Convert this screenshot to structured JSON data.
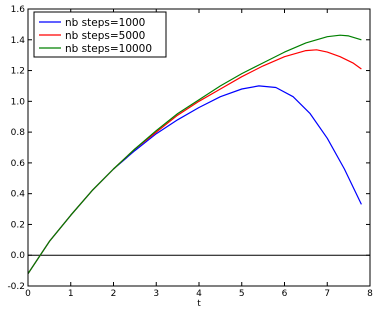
{
  "chart_data": {
    "type": "line",
    "title": "",
    "xlabel": "t",
    "ylabel": "",
    "xlim": [
      0,
      8
    ],
    "ylim": [
      -0.2,
      1.6
    ],
    "xticks": [
      "0",
      "1",
      "2",
      "3",
      "4",
      "5",
      "6",
      "7",
      "8"
    ],
    "yticks": [
      "-0.2",
      "0.0",
      "0.2",
      "0.4",
      "0.6",
      "0.8",
      "1.0",
      "1.2",
      "1.4",
      "1.6"
    ],
    "grid": false,
    "legend_position": "top-left",
    "reference_line_y": 0.0,
    "series": [
      {
        "name": "nb steps=1000",
        "color": "#0000ff",
        "x": [
          0,
          0.5,
          1,
          1.5,
          2,
          2.5,
          3,
          3.5,
          4,
          4.5,
          5,
          5.4,
          5.8,
          6.2,
          6.6,
          7,
          7.4,
          7.8
        ],
        "y": [
          -0.12,
          0.09,
          0.26,
          0.42,
          0.56,
          0.68,
          0.79,
          0.88,
          0.96,
          1.03,
          1.08,
          1.1,
          1.09,
          1.03,
          0.92,
          0.76,
          0.56,
          0.33
        ]
      },
      {
        "name": "nb steps=5000",
        "color": "#ff0000",
        "x": [
          0,
          0.5,
          1,
          1.5,
          2,
          2.5,
          3,
          3.5,
          4,
          4.5,
          5,
          5.5,
          6,
          6.5,
          6.75,
          7,
          7.3,
          7.6,
          7.8
        ],
        "y": [
          -0.12,
          0.09,
          0.26,
          0.42,
          0.56,
          0.69,
          0.8,
          0.91,
          1.0,
          1.08,
          1.16,
          1.23,
          1.29,
          1.33,
          1.335,
          1.32,
          1.29,
          1.25,
          1.21
        ]
      },
      {
        "name": "nb steps=10000",
        "color": "#008000",
        "x": [
          0,
          0.5,
          1,
          1.5,
          2,
          2.5,
          3,
          3.5,
          4,
          4.5,
          5,
          5.5,
          6,
          6.5,
          7,
          7.3,
          7.5,
          7.8
        ],
        "y": [
          -0.12,
          0.09,
          0.26,
          0.42,
          0.56,
          0.69,
          0.81,
          0.92,
          1.01,
          1.1,
          1.18,
          1.25,
          1.32,
          1.38,
          1.42,
          1.43,
          1.425,
          1.4
        ]
      }
    ]
  }
}
